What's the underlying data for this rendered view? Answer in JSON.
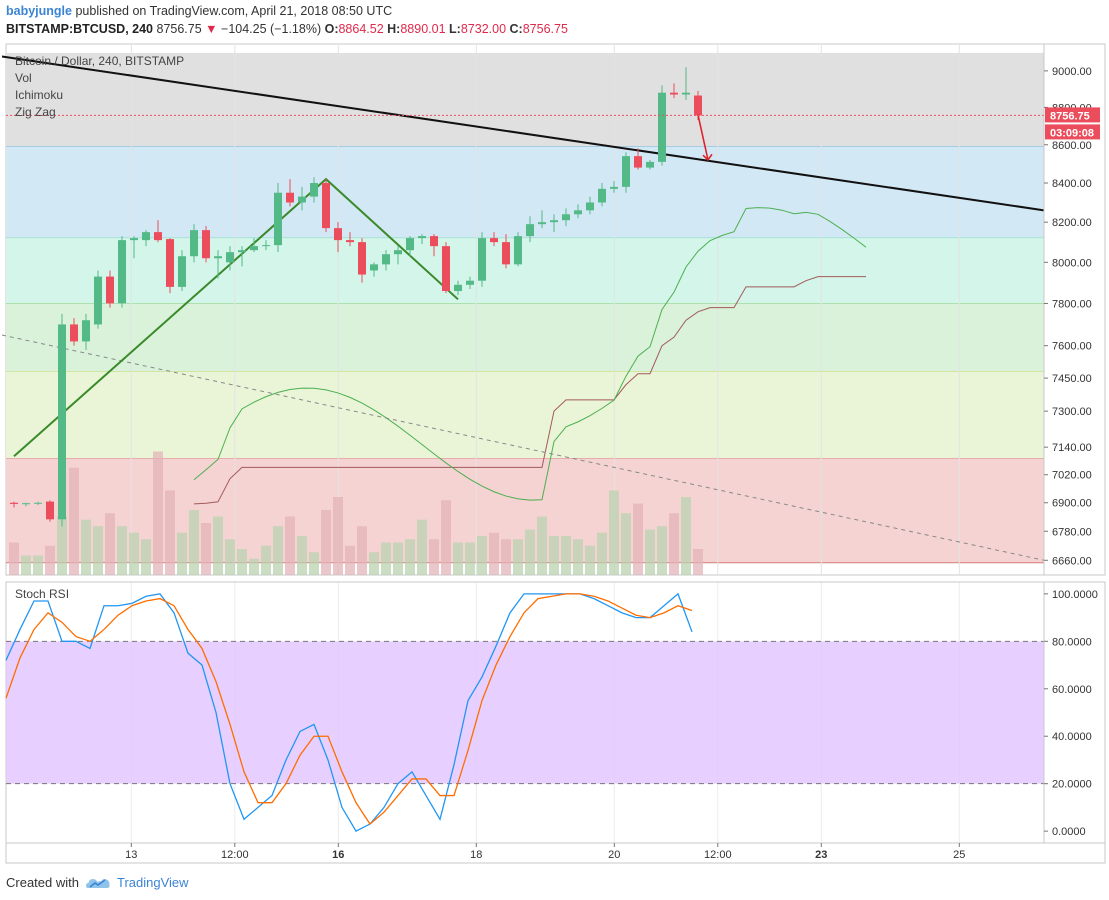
{
  "header": {
    "author": "babyjungle",
    "published_text": "published on TradingView.com, April 21, 2018 08:50 UTC",
    "symbol": "BITSTAMP:BTCUSD, 240",
    "last": "8756.75",
    "change": "−104.25 (−1.18%)",
    "o_label": "O:",
    "o_val": "8864.52",
    "h_label": "H:",
    "h_val": "8890.01",
    "l_label": "L:",
    "l_val": "8732.00",
    "c_label": "C:",
    "c_val": "8756.75"
  },
  "indicators": [
    "Bitcoin / Dollar, 240, BITSTAMP",
    "Vol",
    "Ichimoku",
    "Zig Zag"
  ],
  "rsi_title": "Stoch RSI",
  "footer": {
    "created_with": "Created with",
    "brand": "TradingView"
  },
  "colors": {
    "up": "#53b987",
    "down": "#eb4d5c",
    "rsi_k": "#2196f3",
    "rsi_d": "#ff6d00",
    "rsi_band": "#e1c4ff",
    "price_tag": "#eb4d5c"
  },
  "chart_data": [
    {
      "type": "candlestick",
      "title": "Bitcoin / Dollar, 240, BITSTAMP",
      "y_axis_scale": "log",
      "ylim": [
        6600,
        9150
      ],
      "y_ticks": [
        9000,
        8800,
        8600,
        8400,
        8200,
        8000,
        7800,
        7600,
        7450,
        7300,
        7140,
        7020,
        6900,
        6780,
        6660
      ],
      "y_tick_labels": [
        "9000.00",
        "8800.00",
        "8600.00",
        "8400.00",
        "8200.00",
        "8000.00",
        "7800.00",
        "7600.00",
        "7450.00",
        "7300.00",
        "7140.00",
        "7020.00",
        "6900.00",
        "6780.00",
        "6660.00"
      ],
      "x_ticks": [
        {
          "label": "13",
          "x": 17.5,
          "bold": false
        },
        {
          "label": "12:00",
          "x": 32.5,
          "bold": false
        },
        {
          "label": "16",
          "x": 47.5,
          "bold": true
        },
        {
          "label": "18",
          "x": 67.5,
          "bold": false
        },
        {
          "label": "20",
          "x": 87.5,
          "bold": false
        },
        {
          "label": "12:00",
          "x": 102.5,
          "bold": false
        },
        {
          "label": "23",
          "x": 117.5,
          "bold": true
        },
        {
          "label": "25",
          "x": 137.5,
          "bold": false
        }
      ],
      "price_tag": "8756.75",
      "countdown_tag": "03:09:08",
      "candles": [
        {
          "o": 6900,
          "h": 6905,
          "l": 6880,
          "c": 6895
        },
        {
          "o": 6895,
          "h": 6900,
          "l": 6885,
          "c": 6898
        },
        {
          "o": 6898,
          "h": 6905,
          "l": 6890,
          "c": 6900
        },
        {
          "o": 6905,
          "h": 6910,
          "l": 6820,
          "c": 6830
        },
        {
          "o": 6830,
          "h": 7750,
          "l": 6800,
          "c": 7700
        },
        {
          "o": 7700,
          "h": 7730,
          "l": 7600,
          "c": 7620
        },
        {
          "o": 7620,
          "h": 7750,
          "l": 7580,
          "c": 7720
        },
        {
          "o": 7700,
          "h": 7960,
          "l": 7680,
          "c": 7930
        },
        {
          "o": 7930,
          "h": 7960,
          "l": 7780,
          "c": 7800
        },
        {
          "o": 7800,
          "h": 8130,
          "l": 7780,
          "c": 8110
        },
        {
          "o": 8110,
          "h": 8130,
          "l": 8020,
          "c": 8120
        },
        {
          "o": 8110,
          "h": 8160,
          "l": 8080,
          "c": 8150
        },
        {
          "o": 8150,
          "h": 8210,
          "l": 8100,
          "c": 8110
        },
        {
          "o": 8115,
          "h": 8120,
          "l": 7850,
          "c": 7880
        },
        {
          "o": 7880,
          "h": 8060,
          "l": 7860,
          "c": 8030
        },
        {
          "o": 8030,
          "h": 8190,
          "l": 8000,
          "c": 8160
        },
        {
          "o": 8160,
          "h": 8180,
          "l": 8000,
          "c": 8020
        },
        {
          "o": 8020,
          "h": 8060,
          "l": 7920,
          "c": 8030
        },
        {
          "o": 8000,
          "h": 8080,
          "l": 7960,
          "c": 8050
        },
        {
          "o": 8050,
          "h": 8080,
          "l": 7980,
          "c": 8060
        },
        {
          "o": 8060,
          "h": 8120,
          "l": 8050,
          "c": 8080
        },
        {
          "o": 8080,
          "h": 8110,
          "l": 8060,
          "c": 8085
        },
        {
          "o": 8085,
          "h": 8400,
          "l": 8050,
          "c": 8350
        },
        {
          "o": 8350,
          "h": 8420,
          "l": 8280,
          "c": 8300
        },
        {
          "o": 8300,
          "h": 8380,
          "l": 8260,
          "c": 8330
        },
        {
          "o": 8330,
          "h": 8430,
          "l": 8300,
          "c": 8400
        },
        {
          "o": 8400,
          "h": 8420,
          "l": 8150,
          "c": 8170
        },
        {
          "o": 8170,
          "h": 8200,
          "l": 8050,
          "c": 8110
        },
        {
          "o": 8110,
          "h": 8150,
          "l": 8080,
          "c": 8100
        },
        {
          "o": 8100,
          "h": 8120,
          "l": 7900,
          "c": 7940
        },
        {
          "o": 7960,
          "h": 8000,
          "l": 7930,
          "c": 7990
        },
        {
          "o": 7990,
          "h": 8060,
          "l": 7960,
          "c": 8040
        },
        {
          "o": 8040,
          "h": 8080,
          "l": 7990,
          "c": 8060
        },
        {
          "o": 8060,
          "h": 8130,
          "l": 8030,
          "c": 8120
        },
        {
          "o": 8120,
          "h": 8140,
          "l": 8090,
          "c": 8130
        },
        {
          "o": 8130,
          "h": 8140,
          "l": 8030,
          "c": 8080
        },
        {
          "o": 8080,
          "h": 8100,
          "l": 7850,
          "c": 7860
        },
        {
          "o": 7860,
          "h": 7910,
          "l": 7840,
          "c": 7890
        },
        {
          "o": 7890,
          "h": 7930,
          "l": 7870,
          "c": 7910
        },
        {
          "o": 7910,
          "h": 8150,
          "l": 7880,
          "c": 8120
        },
        {
          "o": 8120,
          "h": 8150,
          "l": 8080,
          "c": 8100
        },
        {
          "o": 8100,
          "h": 8140,
          "l": 7970,
          "c": 7990
        },
        {
          "o": 7990,
          "h": 8150,
          "l": 7980,
          "c": 8130
        },
        {
          "o": 8130,
          "h": 8230,
          "l": 8100,
          "c": 8190
        },
        {
          "o": 8190,
          "h": 8260,
          "l": 8170,
          "c": 8200
        },
        {
          "o": 8200,
          "h": 8240,
          "l": 8150,
          "c": 8210
        },
        {
          "o": 8210,
          "h": 8270,
          "l": 8180,
          "c": 8240
        },
        {
          "o": 8240,
          "h": 8290,
          "l": 8220,
          "c": 8260
        },
        {
          "o": 8260,
          "h": 8330,
          "l": 8240,
          "c": 8300
        },
        {
          "o": 8300,
          "h": 8400,
          "l": 8280,
          "c": 8370
        },
        {
          "o": 8370,
          "h": 8410,
          "l": 8350,
          "c": 8380
        },
        {
          "o": 8380,
          "h": 8560,
          "l": 8350,
          "c": 8540
        },
        {
          "o": 8540,
          "h": 8580,
          "l": 8470,
          "c": 8480
        },
        {
          "o": 8480,
          "h": 8520,
          "l": 8470,
          "c": 8510
        },
        {
          "o": 8510,
          "h": 8920,
          "l": 8490,
          "c": 8880
        },
        {
          "o": 8880,
          "h": 8930,
          "l": 8850,
          "c": 8870
        },
        {
          "o": 8870,
          "h": 9020,
          "l": 8840,
          "c": 8880
        },
        {
          "o": 8864.52,
          "h": 8890.01,
          "l": 8732,
          "c": 8756.75
        }
      ],
      "volume": [
        1.0,
        0.6,
        0.6,
        0.9,
        1.8,
        3.3,
        1.7,
        1.5,
        1.9,
        1.5,
        1.3,
        1.1,
        3.8,
        2.6,
        1.3,
        2.0,
        1.6,
        1.8,
        1.1,
        0.8,
        0.5,
        0.9,
        1.5,
        1.8,
        1.2,
        0.7,
        2.0,
        2.4,
        0.9,
        1.5,
        0.7,
        1.0,
        1.0,
        1.1,
        1.7,
        1.1,
        2.3,
        1.0,
        1.0,
        1.2,
        1.3,
        1.1,
        1.1,
        1.4,
        1.8,
        1.2,
        1.2,
        1.1,
        0.9,
        1.3,
        2.6,
        1.9,
        2.2,
        1.4,
        1.5,
        1.9,
        2.4,
        0.8
      ],
      "ichimoku_cloud_levels": [
        6895,
        6898,
        6904,
        7003,
        7052,
        7052,
        7052,
        7052,
        7052,
        7052,
        7052,
        7052,
        7052,
        7052,
        7052,
        7052,
        7052,
        7052,
        7052,
        7052,
        7052,
        7052,
        7052,
        7052,
        7052,
        7052,
        7052,
        7052,
        7052,
        7052,
        7300,
        7351,
        7351,
        7351,
        7351,
        7351,
        7420,
        7470,
        7470,
        7600,
        7640,
        7720,
        7760,
        7780,
        7780,
        7780,
        7880,
        7880,
        7880,
        7880,
        7880,
        7910,
        7930,
        7930,
        7930,
        7930,
        7930
      ],
      "zigzag": [
        {
          "i": 0,
          "p": 7100
        },
        {
          "i": 26,
          "p": 8420
        },
        {
          "i": 37,
          "p": 7820
        }
      ],
      "trendlines": [
        {
          "from": [
            -1,
            9080
          ],
          "to": [
            90,
            8260
          ],
          "color": "#111"
        },
        {
          "from": [
            -1,
            7650
          ],
          "to": [
            90,
            6660
          ],
          "color": "#888",
          "dashed": true
        }
      ],
      "fib_bands": [
        {
          "from": 9100,
          "to": 8590,
          "color": "#e0e0e0"
        },
        {
          "from": 8590,
          "to": 8120,
          "color": "#d3e8f5"
        },
        {
          "from": 8120,
          "to": 7800,
          "color": "#d3f5ea"
        },
        {
          "from": 7800,
          "to": 7480,
          "color": "#d9f2d9"
        },
        {
          "from": 7480,
          "to": 7090,
          "color": "#eaf5d8"
        },
        {
          "from": 7090,
          "to": 6650,
          "color": "#f5d3d3"
        }
      ]
    },
    {
      "type": "line",
      "title": "Stoch RSI",
      "ylim": [
        -5,
        105
      ],
      "y_ticks": [
        100,
        80,
        60,
        40,
        20,
        0
      ],
      "y_tick_labels": [
        "100.0000",
        "80.0000",
        "60.0000",
        "40.0000",
        "20.0000",
        "0.0000"
      ],
      "band": [
        20,
        80
      ],
      "series": [
        {
          "name": "K",
          "values": [
            72,
            85,
            97,
            97,
            80,
            80,
            77,
            95,
            95,
            96,
            99,
            100,
            92,
            75,
            70,
            50,
            20,
            5,
            10,
            15,
            30,
            42,
            45,
            30,
            10,
            0,
            3,
            10,
            20,
            25,
            15,
            5,
            28,
            55,
            65,
            78,
            92,
            100,
            100,
            100,
            100,
            100,
            98,
            95,
            92,
            90,
            90,
            95,
            100,
            84
          ]
        },
        {
          "name": "D",
          "values": [
            56,
            73,
            85,
            92,
            88,
            82,
            80,
            85,
            91,
            95,
            97,
            98,
            95,
            85,
            77,
            63,
            45,
            25,
            12,
            12,
            20,
            32,
            40,
            40,
            25,
            12,
            3,
            8,
            15,
            22,
            22,
            15,
            15,
            34,
            55,
            70,
            82,
            92,
            98,
            99,
            100,
            100,
            99,
            97,
            94,
            91,
            90,
            92,
            95,
            93
          ]
        }
      ]
    }
  ]
}
